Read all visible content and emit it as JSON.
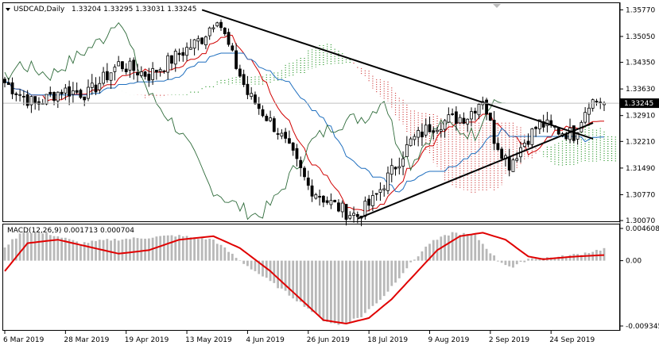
{
  "header": {
    "symbol": "USDCAD,Daily",
    "ohlc": "1.33204 1.33295 1.33031 1.33245"
  },
  "price_axis": {
    "ticks": [
      "1.35770",
      "1.35050",
      "1.34350",
      "1.33630",
      "1.32910",
      "1.32210",
      "1.31490",
      "1.30770",
      "1.30070"
    ],
    "current_price": "1.33245"
  },
  "macd_panel": {
    "label": "MACD(12,26,9) 0.001713 0.000704",
    "ticks": [
      "0.004608",
      "0.00",
      "-0.009345"
    ]
  },
  "time_axis": {
    "ticks": [
      "6 Mar 2019",
      "28 Mar 2019",
      "19 Apr 2019",
      "13 May 2019",
      "4 Jun 2019",
      "26 Jun 2019",
      "18 Jul 2019",
      "9 Aug 2019",
      "2 Sep 2019",
      "24 Sep 2019"
    ]
  },
  "colors": {
    "background": "#ffffff",
    "candles": "#000000",
    "tenkan": "#d00000",
    "kijun": "#1f6fbf",
    "chikou": "#2e6b3a",
    "kumo_bear": "#cc3333",
    "kumo_bull": "#1a8f1a",
    "macd_signal": "#e00000",
    "macd_hist": "#b8b8b8",
    "trendline": "#000000"
  },
  "chart_data": {
    "type": "candlestick",
    "instrument": "USDCAD",
    "timeframe": "Daily",
    "last_bar": {
      "open": 1.33204,
      "high": 1.33295,
      "low": 1.33031,
      "close": 1.33245
    },
    "price_range": [
      1.3005,
      1.3595
    ],
    "indicators": [
      "Ichimoku",
      "MACD(12,26,9)"
    ],
    "anchors_close": [
      [
        0,
        1.338
      ],
      [
        8,
        1.332
      ],
      [
        15,
        1.336
      ],
      [
        22,
        1.335
      ],
      [
        30,
        1.343
      ],
      [
        38,
        1.34
      ],
      [
        45,
        1.345
      ],
      [
        52,
        1.35
      ],
      [
        56,
        1.356
      ],
      [
        60,
        1.345
      ],
      [
        64,
        1.335
      ],
      [
        68,
        1.33
      ],
      [
        72,
        1.325
      ],
      [
        76,
        1.318
      ],
      [
        80,
        1.31
      ],
      [
        85,
        1.306
      ],
      [
        90,
        1.303
      ],
      [
        93,
        1.302
      ],
      [
        97,
        1.306
      ],
      [
        102,
        1.314
      ],
      [
        107,
        1.322
      ],
      [
        112,
        1.326
      ],
      [
        117,
        1.328
      ],
      [
        122,
        1.329
      ],
      [
        126,
        1.334
      ],
      [
        129,
        1.323
      ],
      [
        133,
        1.316
      ],
      [
        137,
        1.322
      ],
      [
        141,
        1.327
      ],
      [
        146,
        1.325
      ],
      [
        150,
        1.324
      ],
      [
        154,
        1.333
      ],
      [
        158,
        1.333
      ]
    ],
    "macd_range": [
      -0.009345,
      0.004608
    ],
    "macd_hist_anchors": [
      [
        0,
        0.002
      ],
      [
        5,
        0.0042
      ],
      [
        12,
        0.0038
      ],
      [
        20,
        0.0025
      ],
      [
        28,
        0.003
      ],
      [
        35,
        0.0032
      ],
      [
        45,
        0.0036
      ],
      [
        55,
        0.003
      ],
      [
        62,
        0.0
      ],
      [
        70,
        -0.003
      ],
      [
        78,
        -0.006
      ],
      [
        84,
        -0.0085
      ],
      [
        88,
        -0.0092
      ],
      [
        94,
        -0.008
      ],
      [
        100,
        -0.005
      ],
      [
        106,
        -0.001
      ],
      [
        112,
        0.0025
      ],
      [
        118,
        0.004
      ],
      [
        124,
        0.0036
      ],
      [
        130,
        0.0
      ],
      [
        134,
        -0.001
      ],
      [
        138,
        0.0003
      ],
      [
        146,
        0.0005
      ],
      [
        152,
        0.001
      ],
      [
        158,
        0.0017
      ]
    ],
    "macd_signal_anchors": [
      [
        0,
        -0.0015
      ],
      [
        6,
        0.0025
      ],
      [
        14,
        0.003
      ],
      [
        22,
        0.002
      ],
      [
        30,
        0.001
      ],
      [
        38,
        0.0015
      ],
      [
        46,
        0.003
      ],
      [
        55,
        0.0035
      ],
      [
        62,
        0.0018
      ],
      [
        70,
        -0.0015
      ],
      [
        78,
        -0.0055
      ],
      [
        84,
        -0.0085
      ],
      [
        90,
        -0.009
      ],
      [
        96,
        -0.0082
      ],
      [
        102,
        -0.0055
      ],
      [
        108,
        -0.002
      ],
      [
        114,
        0.0015
      ],
      [
        120,
        0.0035
      ],
      [
        126,
        0.004
      ],
      [
        132,
        0.003
      ],
      [
        138,
        0.0006
      ],
      [
        142,
        0.0002
      ],
      [
        148,
        0.0005
      ],
      [
        154,
        0.0007
      ],
      [
        158,
        0.0008
      ]
    ],
    "triangle": {
      "upper": [
        [
          52,
          1.3577
        ],
        [
          156,
          1.3225
        ]
      ],
      "lower": [
        [
          93,
          1.3012
        ],
        [
          150,
          1.325
        ]
      ]
    }
  }
}
